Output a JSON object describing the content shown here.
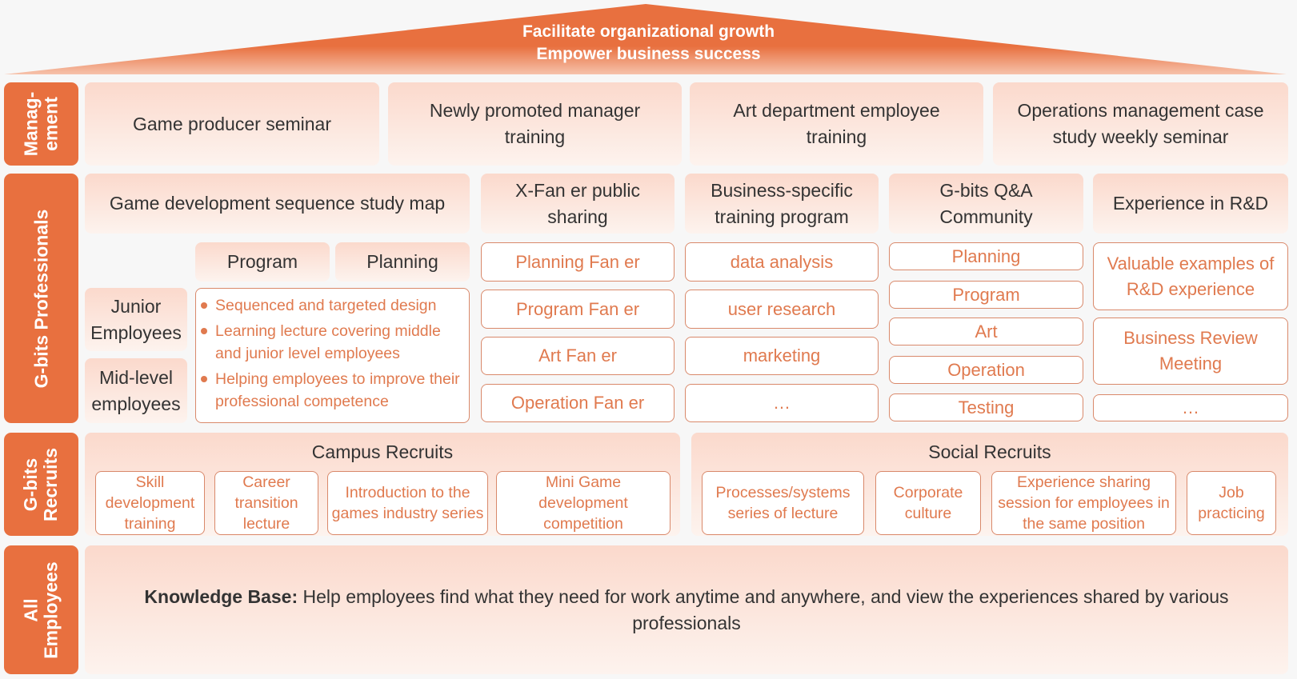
{
  "colors": {
    "accent": "#e8703f",
    "box_fill": "#fbd9cc",
    "outline": "#d9896b",
    "outline_text": "#e07a4f"
  },
  "roof": {
    "line1": "Facilitate organizational growth",
    "line2": "Empower business success"
  },
  "rows": {
    "management": {
      "label": "Manag-\nement",
      "items": [
        "Game producer seminar",
        "Newly promoted manager training",
        "Art department employee training",
        "Operations management case study weekly seminar"
      ]
    },
    "professionals": {
      "label": "G-bits Professionals",
      "study_map": {
        "title": "Game development sequence study map",
        "tracks": [
          "Program",
          "Planning"
        ],
        "levels": [
          "Junior Employees",
          "Mid-level employees"
        ],
        "bullets": [
          "Sequenced and targeted design",
          "Learning lecture covering middle and junior level employees",
          "Helping employees to improve their professional competence"
        ]
      },
      "fan_er": {
        "title": "X-Fan er public sharing",
        "items": [
          "Planning Fan er",
          "Program Fan er",
          "Art Fan er",
          "Operation Fan er"
        ]
      },
      "business": {
        "title": "Business-specific training program",
        "items": [
          "data analysis",
          "user research",
          "marketing",
          "…"
        ]
      },
      "qa": {
        "title": "G-bits Q&A Community",
        "items": [
          "Planning",
          "Program",
          "Art",
          "Operation",
          "Testing"
        ]
      },
      "rd": {
        "title": "Experience in R&D",
        "items": [
          "Valuable examples of R&D experience",
          "Business Review Meeting",
          "…"
        ]
      }
    },
    "recruits": {
      "label": "G-bits\nRecruits",
      "campus": {
        "title": "Campus Recruits",
        "items": [
          "Skill development training",
          "Career transition lecture",
          "Introduction to the games industry series",
          "Mini Game development competition"
        ]
      },
      "social": {
        "title": "Social Recruits",
        "items": [
          "Processes/systems series of lecture",
          "Corporate culture",
          "Experience sharing session for employees in the same position",
          "Job practicing"
        ]
      }
    },
    "all": {
      "label": "All\nEmployees",
      "kb_label": "Knowledge Base:",
      "kb_text": " Help employees find what they need for work anytime and anywhere, and view the experiences shared by various professionals"
    }
  }
}
